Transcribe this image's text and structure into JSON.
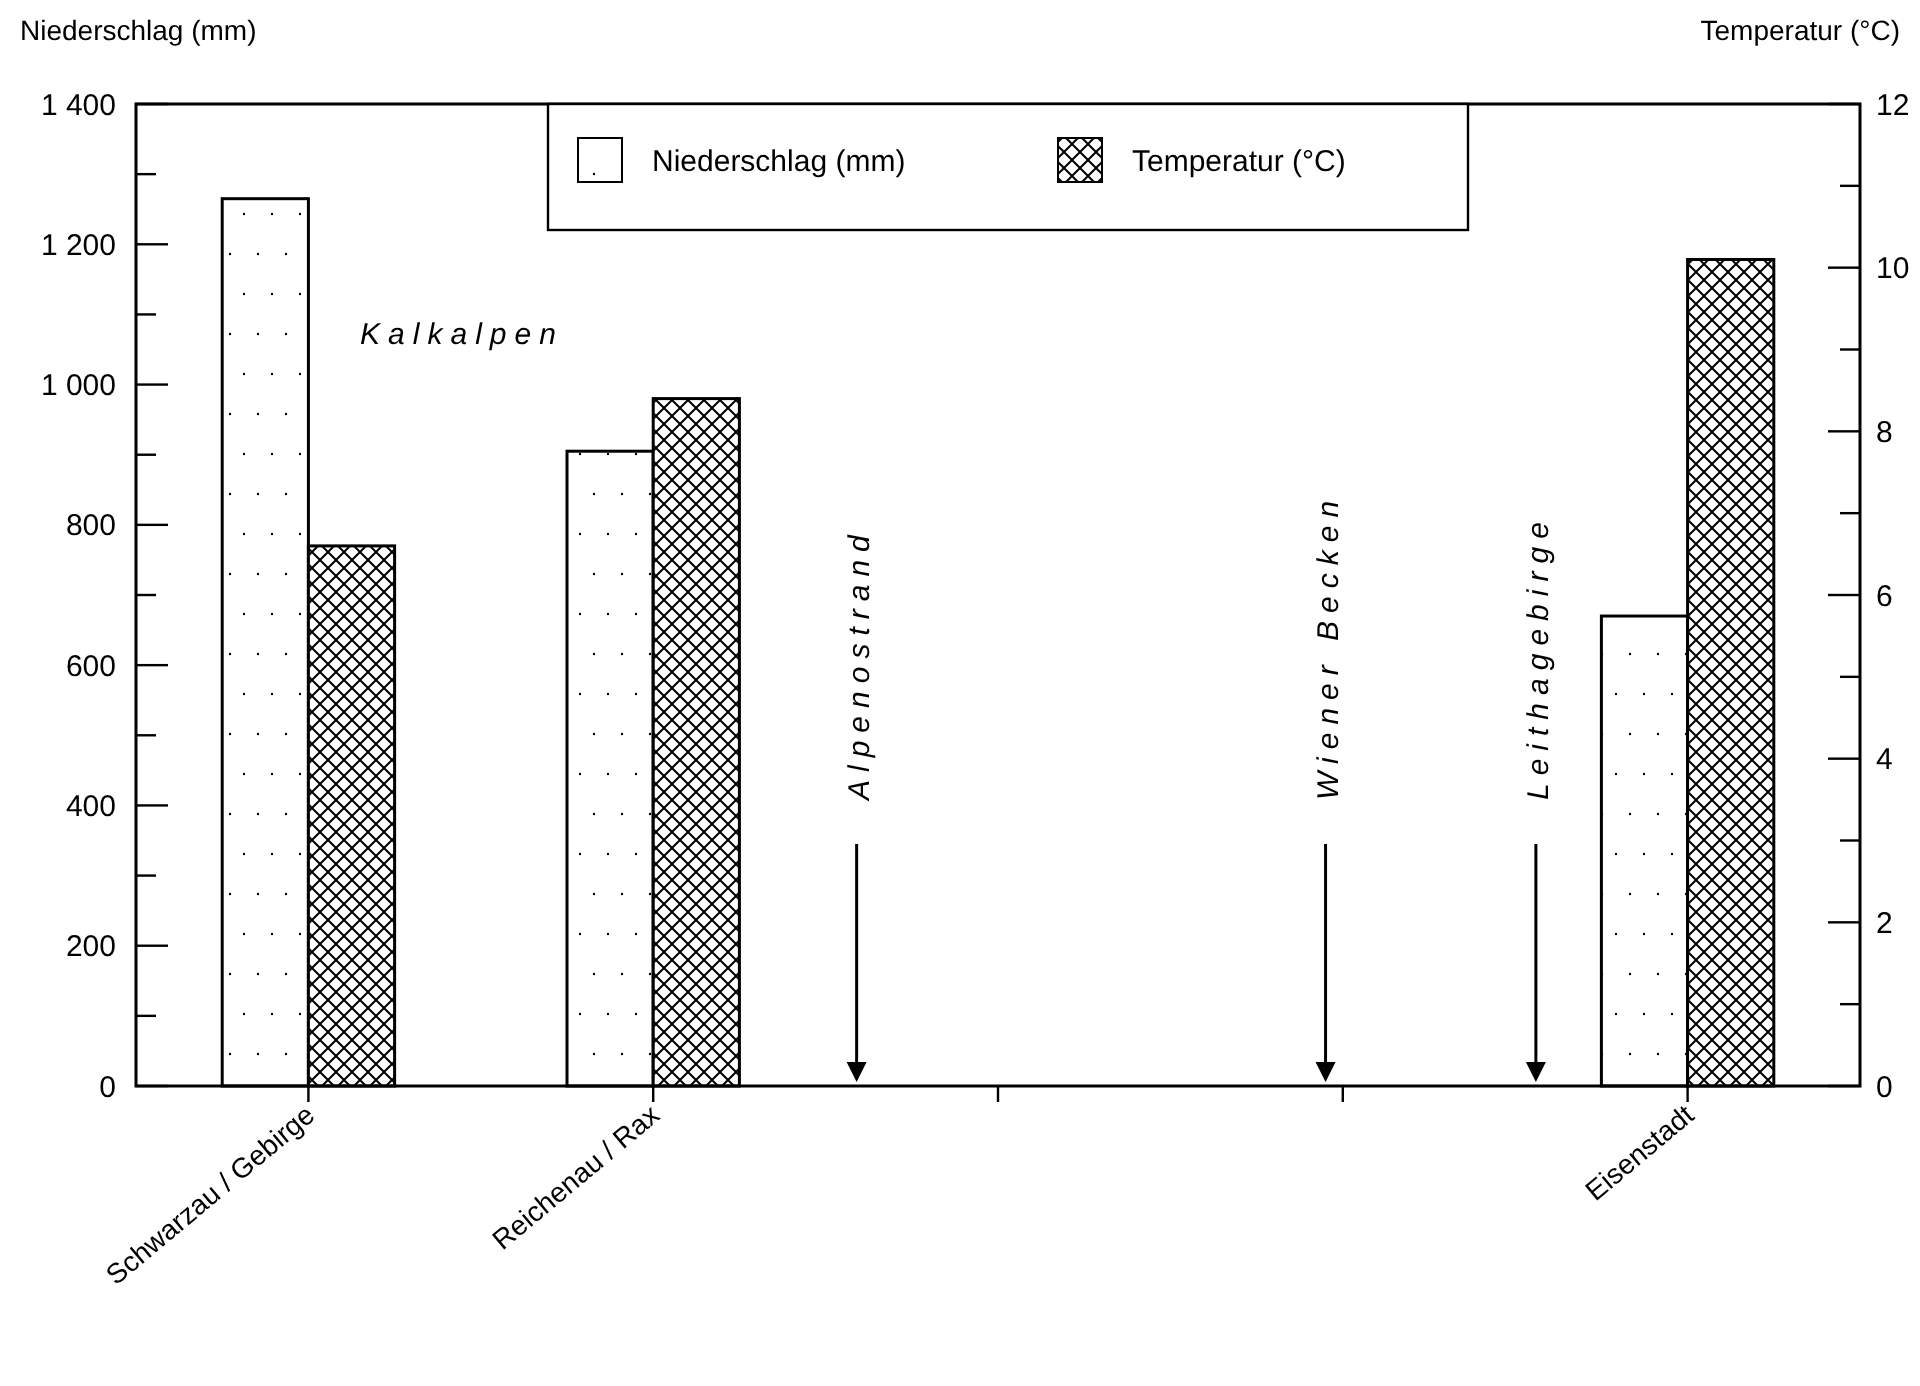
{
  "chart_data": {
    "type": "bar",
    "categories": [
      "Schwarzau / Gebirge",
      "Reichenau / Rax",
      null,
      null,
      "Eisenstadt"
    ],
    "series": [
      {
        "name": "Niederschlag (mm)",
        "color": "#000000",
        "values": [
          1265,
          905,
          null,
          null,
          670
        ]
      },
      {
        "name": "Temperatur (°C)",
        "color": "#000000",
        "axis": "y2",
        "values": [
          6.6,
          8.4,
          null,
          null,
          10.1
        ]
      }
    ],
    "ylabel": "Niederschlag (mm)",
    "y2label": "Temperatur (°C)",
    "ylim": [
      0,
      1400
    ],
    "yticks": [
      0,
      {
        "value": 100,
        "label": null
      },
      200,
      {
        "value": 300,
        "label": null
      },
      400,
      {
        "value": 500,
        "label": null
      },
      600,
      {
        "value": 700,
        "label": null
      },
      800,
      {
        "value": 900,
        "label": null
      },
      {
        "value": 1000,
        "label": "1 000"
      },
      {
        "value": 1100,
        "label": null
      },
      {
        "value": 1200,
        "label": "1 200"
      },
      {
        "value": 1300,
        "label": null
      },
      {
        "value": 1400,
        "label": "1 400"
      }
    ],
    "y2lim": [
      0,
      12
    ],
    "y2ticks": [
      0,
      {
        "value": 1,
        "label": null
      },
      2,
      {
        "value": 3,
        "label": null
      },
      4,
      {
        "value": 5,
        "label": null
      },
      6,
      {
        "value": 7,
        "label": null
      },
      8,
      {
        "value": 9,
        "label": null
      },
      10,
      {
        "value": 11,
        "label": null
      },
      12
    ],
    "annotations": [
      "Kalkalpen",
      "Alpenostrand",
      "Wiener Becken",
      "Leithagebirge"
    ],
    "legend": "top",
    "grid": false
  }
}
